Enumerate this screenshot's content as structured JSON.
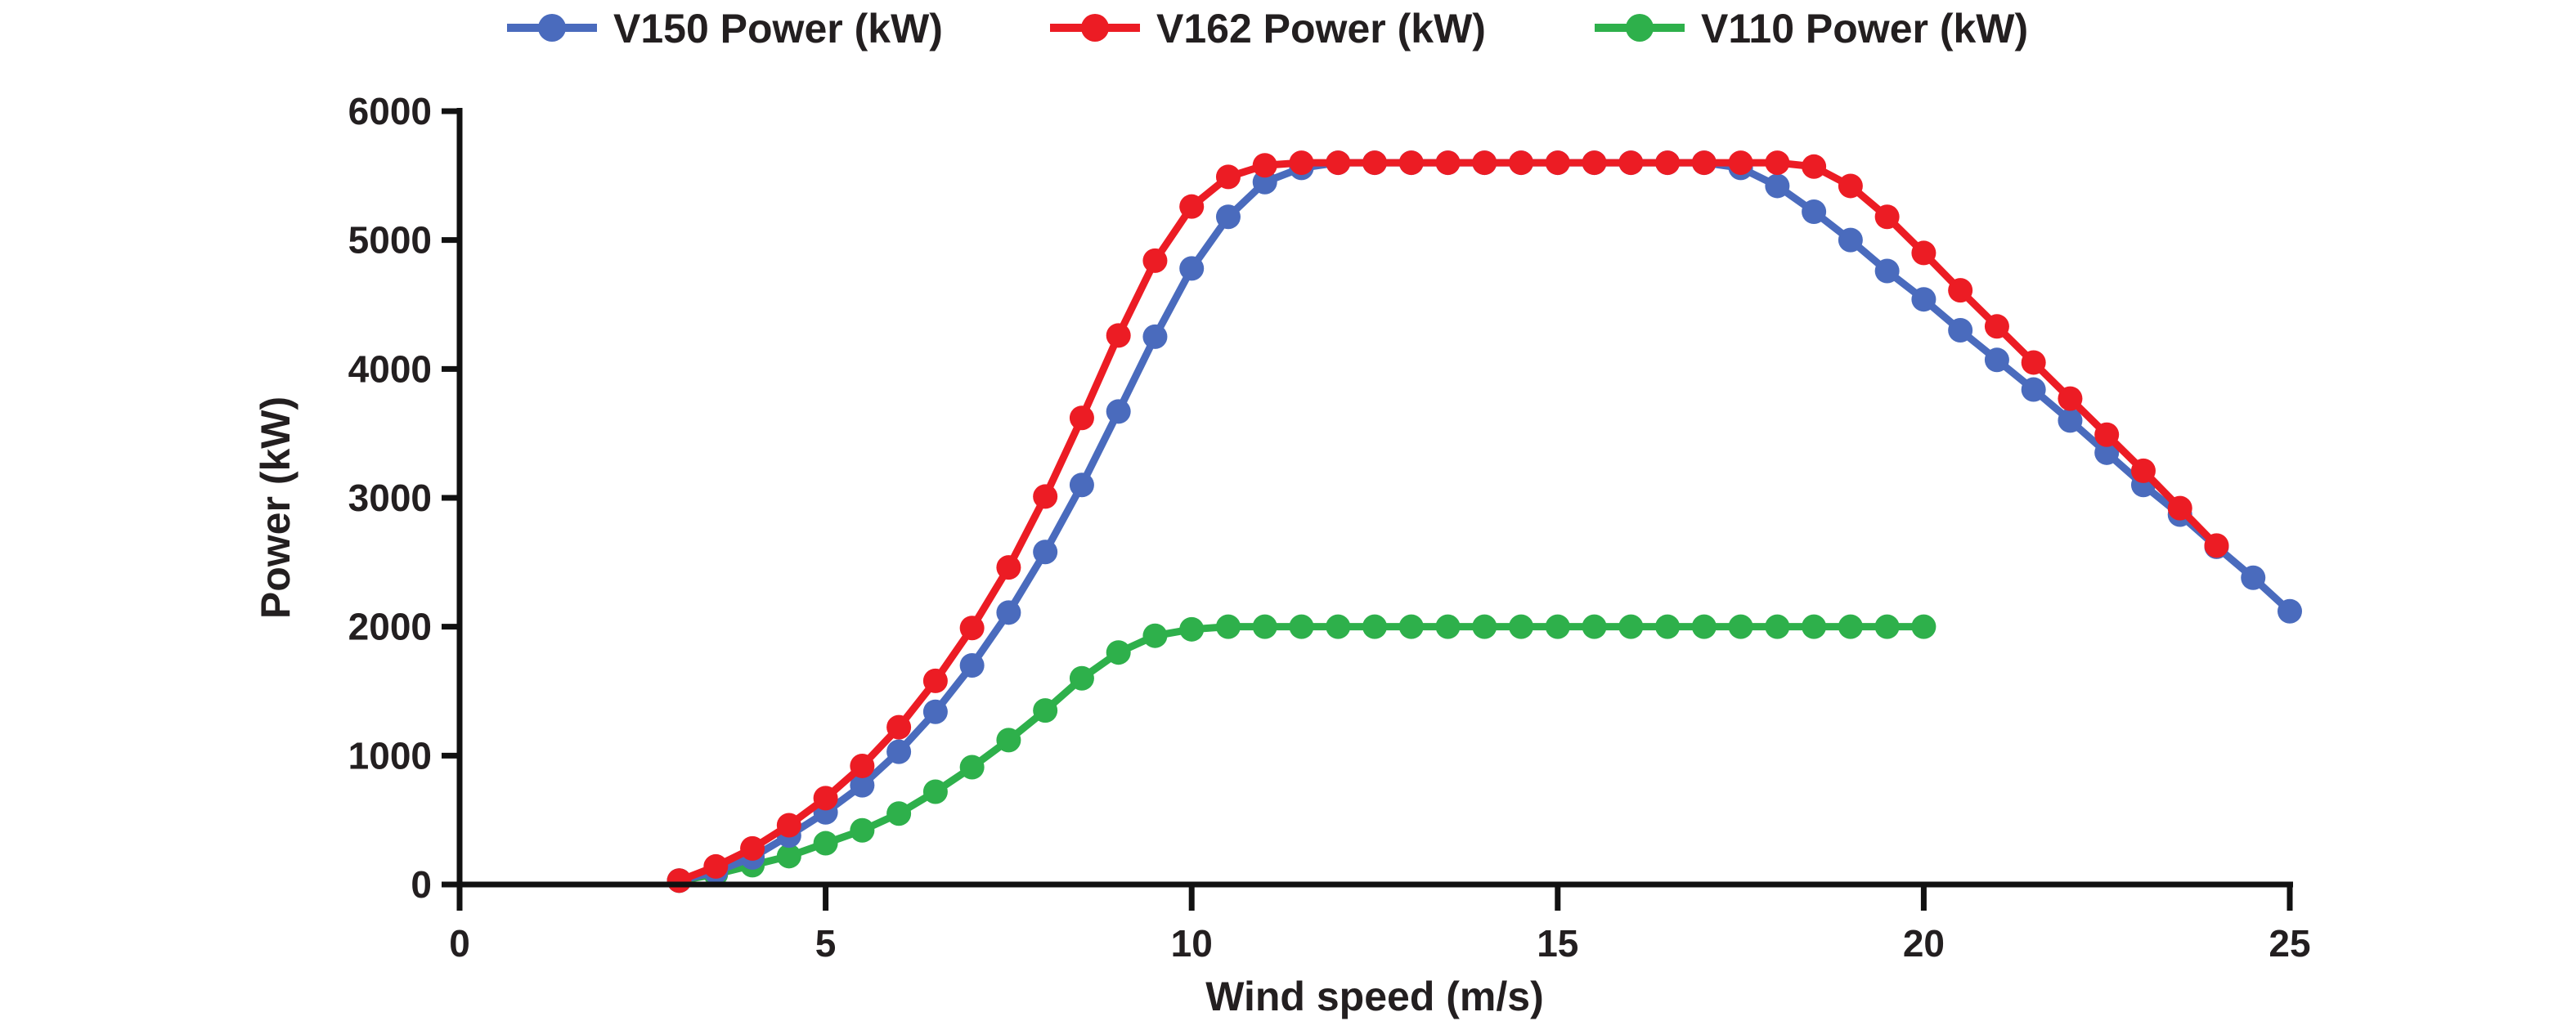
{
  "chart_data": {
    "type": "line",
    "title": "",
    "xlabel": "Wind speed (m/s)",
    "ylabel": "Power (kW)",
    "xlim": [
      0,
      25
    ],
    "ylim": [
      0,
      6000
    ],
    "xticks": [
      0,
      5,
      10,
      15,
      20,
      25
    ],
    "yticks": [
      0,
      1000,
      2000,
      3000,
      4000,
      5000,
      6000
    ],
    "xtick_labels": [
      "0",
      "5",
      "10",
      "15",
      "20",
      "25"
    ],
    "ytick_labels": [
      "0",
      "1000",
      "2000",
      "3000",
      "4000",
      "5000",
      "6000"
    ],
    "grid": false,
    "legend_position": "top-center",
    "markers": "circle",
    "series": [
      {
        "name": "V150 Power (kW)",
        "color": "#4a6bbd",
        "x": [
          3,
          3.5,
          4,
          4.5,
          5,
          5.5,
          6,
          6.5,
          7,
          7.5,
          8,
          8.5,
          9,
          9.5,
          10,
          10.5,
          11,
          11.5,
          12,
          12.5,
          13,
          13.5,
          14,
          14.5,
          15,
          15.5,
          16,
          16.5,
          17,
          17.5,
          18,
          18.5,
          19,
          19.5,
          20,
          20.5,
          21,
          21.5,
          22,
          22.5,
          23,
          23.5,
          24,
          24.5,
          25
        ],
        "values": [
          30,
          100,
          210,
          380,
          560,
          770,
          1030,
          1340,
          1700,
          2110,
          2580,
          3100,
          3670,
          4250,
          4780,
          5180,
          5450,
          5560,
          5600,
          5600,
          5600,
          5600,
          5600,
          5600,
          5600,
          5600,
          5600,
          5600,
          5600,
          5560,
          5420,
          5220,
          5000,
          4760,
          4540,
          4300,
          4070,
          3840,
          3600,
          3350,
          3100,
          2870,
          2620,
          2380,
          2120
        ]
      },
      {
        "name": "V162 Power (kW)",
        "color": "#ec1c24",
        "x": [
          3,
          3.5,
          4,
          4.5,
          5,
          5.5,
          6,
          6.5,
          7,
          7.5,
          8,
          8.5,
          9,
          9.5,
          10,
          10.5,
          11,
          11.5,
          12,
          12.5,
          13,
          13.5,
          14,
          14.5,
          15,
          15.5,
          16,
          16.5,
          17,
          17.5,
          18,
          18.5,
          19,
          19.5,
          20,
          20.5,
          21,
          21.5,
          22,
          22.5,
          23,
          23.5,
          24
        ],
        "values": [
          30,
          140,
          280,
          460,
          670,
          920,
          1220,
          1580,
          1990,
          2460,
          3010,
          3620,
          4260,
          4840,
          5260,
          5490,
          5580,
          5600,
          5600,
          5600,
          5600,
          5600,
          5600,
          5600,
          5600,
          5600,
          5600,
          5600,
          5600,
          5600,
          5600,
          5570,
          5420,
          5180,
          4900,
          4610,
          4330,
          4050,
          3770,
          3490,
          3210,
          2920,
          2630
        ]
      },
      {
        "name": "V110 Power (kW)",
        "color": "#2eb04b",
        "x": [
          3,
          3.5,
          4,
          4.5,
          5,
          5.5,
          6,
          6.5,
          7,
          7.5,
          8,
          8.5,
          9,
          9.5,
          10,
          10.5,
          11,
          11.5,
          12,
          12.5,
          13,
          13.5,
          14,
          14.5,
          15,
          15.5,
          16,
          16.5,
          17,
          17.5,
          18,
          18.5,
          19,
          19.5,
          20
        ],
        "values": [
          30,
          80,
          150,
          220,
          320,
          420,
          550,
          720,
          910,
          1120,
          1350,
          1600,
          1800,
          1930,
          1980,
          2000,
          2000,
          2000,
          2000,
          2000,
          2000,
          2000,
          2000,
          2000,
          2000,
          2000,
          2000,
          2000,
          2000,
          2000,
          2000,
          2000,
          2000,
          2000,
          2000
        ]
      }
    ]
  }
}
